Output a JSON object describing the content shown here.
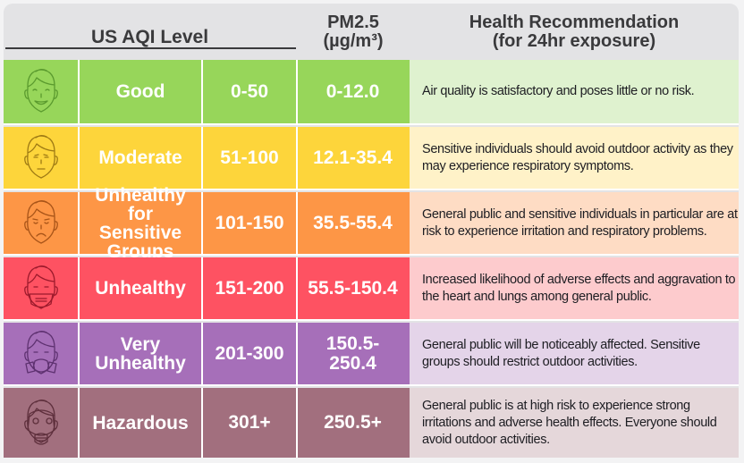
{
  "header": {
    "level": "US AQI Level",
    "pm_line1": "PM2.5",
    "pm_line2": "(µg/m³)",
    "desc_line1": "Health Recommendation",
    "desc_line2": "(for 24hr exposure)"
  },
  "rows": [
    {
      "icon": "smiling-face-icon",
      "level": "Good",
      "aqi": "0-50",
      "pm": "0-12.0",
      "description": "Air quality is satisfactory and poses little or no risk.",
      "color": "#97d65a",
      "light": "#dff2cf",
      "stroke": "#5a9a2e"
    },
    {
      "icon": "neutral-face-icon",
      "level": "Moderate",
      "aqi": "51-100",
      "pm": "12.1-35.4",
      "description": "Sensitive individuals should avoid outdoor activity as they may experience respiratory symptoms.",
      "color": "#fdd53b",
      "light": "#fff2c8",
      "stroke": "#9e7a14"
    },
    {
      "icon": "sad-face-icon",
      "level": "Unhealthy for Sensitive Groups",
      "aqi": "101-150",
      "pm": "35.5-55.4",
      "description": "General public and sensitive individuals in particular are at risk to experience irritation and respiratory problems.",
      "color": "#fd9646",
      "light": "#fedcc4",
      "stroke": "#a85418"
    },
    {
      "icon": "face-mask-icon",
      "level": "Unhealthy",
      "aqi": "151-200",
      "pm": "55.5-150.4",
      "description": "Increased likelihood of adverse effects and aggravation to the heart and lungs among general public.",
      "color": "#fe5262",
      "light": "#fdcbcd",
      "stroke": "#9c1a2c"
    },
    {
      "icon": "respirator-mask-icon",
      "level": "Very Unhealthy",
      "aqi": "201-300",
      "pm": "150.5-250.4",
      "description": "General public will be noticeably affected. Sensitive groups should restrict outdoor activities.",
      "color": "#a66fb9",
      "light": "#e4d4e9",
      "stroke": "#5e3170"
    },
    {
      "icon": "gas-mask-icon",
      "level": "Hazardous",
      "aqi": "301+",
      "pm": "250.5+",
      "description": "General public is at high risk to experience strong irritations and adverse health effects. Everyone should avoid outdoor activities.",
      "color": "#a26f7e",
      "light": "#e5d7da",
      "stroke": "#5e2f3c"
    }
  ]
}
